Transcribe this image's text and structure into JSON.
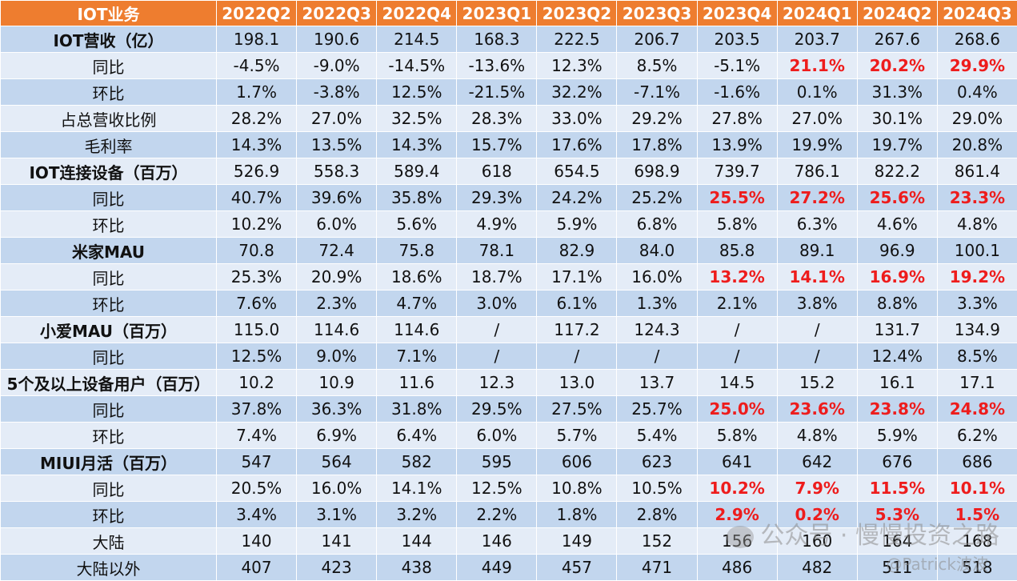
{
  "table": {
    "header_label": "IOT业务",
    "periods": [
      "2022Q2",
      "2022Q3",
      "2022Q4",
      "2023Q1",
      "2023Q2",
      "2023Q3",
      "2023Q4",
      "2024Q1",
      "2024Q2",
      "2024Q3"
    ],
    "rows": [
      {
        "label": "IOT营收（亿）",
        "bold": true,
        "values": [
          "198.1",
          "190.6",
          "214.5",
          "168.3",
          "222.5",
          "206.7",
          "203.5",
          "203.7",
          "267.6",
          "268.6"
        ],
        "red": []
      },
      {
        "label": "同比",
        "bold": false,
        "values": [
          "-4.5%",
          "-9.0%",
          "-14.5%",
          "-13.6%",
          "12.3%",
          "8.5%",
          "-5.1%",
          "21.1%",
          "20.2%",
          "29.9%"
        ],
        "red": [
          7,
          8,
          9
        ]
      },
      {
        "label": "环比",
        "bold": false,
        "values": [
          "1.7%",
          "-3.8%",
          "12.5%",
          "-21.5%",
          "32.2%",
          "-7.1%",
          "-1.6%",
          "0.1%",
          "31.3%",
          "0.4%"
        ],
        "red": []
      },
      {
        "label": "占总营收比例",
        "bold": false,
        "values": [
          "28.2%",
          "27.0%",
          "32.5%",
          "28.3%",
          "33.0%",
          "29.2%",
          "27.8%",
          "27.0%",
          "30.1%",
          "29.0%"
        ],
        "red": []
      },
      {
        "label": "毛利率",
        "bold": false,
        "values": [
          "14.3%",
          "13.5%",
          "14.3%",
          "15.7%",
          "17.6%",
          "17.8%",
          "13.9%",
          "19.9%",
          "19.7%",
          "20.8%"
        ],
        "red": []
      },
      {
        "label": "IOT连接设备（百万）",
        "bold": true,
        "values": [
          "526.9",
          "558.3",
          "589.4",
          "618",
          "654.5",
          "698.9",
          "739.7",
          "786.1",
          "822.2",
          "861.4"
        ],
        "red": []
      },
      {
        "label": "同比",
        "bold": false,
        "values": [
          "40.7%",
          "39.6%",
          "35.8%",
          "29.3%",
          "24.2%",
          "25.2%",
          "25.5%",
          "27.2%",
          "25.6%",
          "23.3%"
        ],
        "red": [
          6,
          7,
          8,
          9
        ]
      },
      {
        "label": "环比",
        "bold": false,
        "values": [
          "10.2%",
          "6.0%",
          "5.6%",
          "4.9%",
          "5.9%",
          "6.8%",
          "5.8%",
          "6.3%",
          "4.6%",
          "4.8%"
        ],
        "red": []
      },
      {
        "label": "米家MAU",
        "bold": true,
        "values": [
          "70.8",
          "72.4",
          "75.8",
          "78.1",
          "82.9",
          "84.0",
          "85.8",
          "89.1",
          "96.9",
          "100.1"
        ],
        "red": []
      },
      {
        "label": "同比",
        "bold": false,
        "values": [
          "25.3%",
          "20.9%",
          "18.6%",
          "18.7%",
          "17.1%",
          "16.0%",
          "13.2%",
          "14.1%",
          "16.9%",
          "19.2%"
        ],
        "red": [
          6,
          7,
          8,
          9
        ]
      },
      {
        "label": "环比",
        "bold": false,
        "values": [
          "7.6%",
          "2.3%",
          "4.7%",
          "3.0%",
          "6.1%",
          "1.3%",
          "2.1%",
          "3.8%",
          "8.8%",
          "3.3%"
        ],
        "red": []
      },
      {
        "label": "小爱MAU（百万）",
        "bold": true,
        "values": [
          "115.0",
          "114.6",
          "114.6",
          "/",
          "117.2",
          "124.3",
          "/",
          "/",
          "131.7",
          "134.9"
        ],
        "red": []
      },
      {
        "label": "同比",
        "bold": false,
        "values": [
          "12.5%",
          "9.0%",
          "7.1%",
          "/",
          "/",
          "/",
          "/",
          "/",
          "12.4%",
          "8.5%"
        ],
        "red": []
      },
      {
        "label": "5个及以上设备用户（百万）",
        "bold": true,
        "values": [
          "10.2",
          "10.9",
          "11.6",
          "12.3",
          "13.0",
          "13.7",
          "14.5",
          "15.2",
          "16.1",
          "17.1"
        ],
        "red": []
      },
      {
        "label": "同比",
        "bold": false,
        "values": [
          "37.8%",
          "36.3%",
          "31.8%",
          "29.5%",
          "27.5%",
          "25.7%",
          "25.0%",
          "23.6%",
          "23.8%",
          "24.8%"
        ],
        "red": [
          6,
          7,
          8,
          9
        ]
      },
      {
        "label": "环比",
        "bold": false,
        "values": [
          "7.4%",
          "6.9%",
          "6.4%",
          "6.0%",
          "5.7%",
          "5.4%",
          "5.8%",
          "4.8%",
          "5.9%",
          "6.2%"
        ],
        "red": []
      },
      {
        "label": "MIUI月活（百万）",
        "bold": true,
        "values": [
          "547",
          "564",
          "582",
          "595",
          "606",
          "623",
          "641",
          "642",
          "676",
          "686"
        ],
        "red": []
      },
      {
        "label": "同比",
        "bold": false,
        "values": [
          "20.5%",
          "16.0%",
          "14.1%",
          "12.5%",
          "10.8%",
          "10.5%",
          "10.2%",
          "7.9%",
          "11.5%",
          "10.1%"
        ],
        "red": [
          6,
          7,
          8,
          9
        ]
      },
      {
        "label": "环比",
        "bold": false,
        "values": [
          "3.4%",
          "3.1%",
          "3.2%",
          "2.2%",
          "1.8%",
          "2.8%",
          "2.9%",
          "0.2%",
          "5.3%",
          "1.5%"
        ],
        "red": [
          6,
          7,
          8,
          9
        ]
      },
      {
        "label": "大陆",
        "bold": false,
        "values": [
          "140",
          "141",
          "144",
          "146",
          "149",
          "152",
          "156",
          "160",
          "164",
          "168"
        ],
        "red": []
      },
      {
        "label": "大陆以外",
        "bold": false,
        "values": [
          "407",
          "423",
          "438",
          "449",
          "457",
          "471",
          "486",
          "482",
          "511",
          "518"
        ],
        "red": []
      }
    ]
  },
  "watermark": {
    "text": "公众号 · 慢慢投资之路",
    "sub": "@Patrick波波"
  },
  "colors": {
    "header_bg": "#ee7d2f",
    "row_dark": "#c2d6ee",
    "row_light": "#e4ecf7",
    "highlight": "#ee1c1c"
  }
}
